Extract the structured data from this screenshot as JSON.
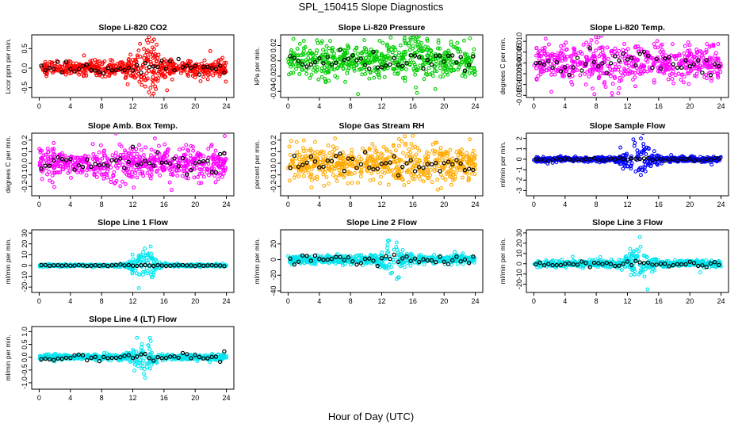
{
  "figure": {
    "title": "SPL_150415  Slope Diagnostics",
    "xlabel": "Hour of Day (UTC)"
  },
  "chart_data": [
    {
      "type": "scatter",
      "title": "Slope Li-820 CO2",
      "ylabel": "Licor ppm per min.",
      "xlim": [
        0,
        24
      ],
      "ylim": [
        -0.75,
        0.85
      ],
      "xticks": [
        0,
        4,
        8,
        12,
        16,
        20,
        24
      ],
      "yticks": [
        -0.5,
        0.0,
        0.5
      ],
      "ytick_labels": [
        "-0.5",
        "0.0",
        "0.5"
      ],
      "color": "#ff0000",
      "spread": 0.09,
      "spike_amp": 0.6,
      "spike_center": 13.8,
      "summary_spread": 0.08,
      "summary_count": 45,
      "count": 600
    },
    {
      "type": "scatter",
      "title": "Slope Li-820 Pressure",
      "ylabel": "kPa per min.",
      "xlim": [
        0,
        24
      ],
      "ylim": [
        -0.048,
        0.034
      ],
      "xticks": [
        0,
        4,
        8,
        12,
        16,
        20,
        24
      ],
      "yticks": [
        -0.04,
        -0.02,
        0.0,
        0.02
      ],
      "ytick_labels": [
        "-0.04",
        "-0.02",
        "0.00",
        "0.02"
      ],
      "color": "#00cc00",
      "spread": 0.011,
      "spike_amp": 0.02,
      "spike_center": 16.5,
      "summary_spread": 0.006,
      "summary_count": 45,
      "count": 600
    },
    {
      "type": "scatter",
      "title": "Slope Li-820 Temp.",
      "ylabel": "degrees C per min.",
      "xlim": [
        0,
        24
      ],
      "ylim": [
        -0.016,
        0.013
      ],
      "xticks": [
        0,
        4,
        8,
        12,
        16,
        20,
        24
      ],
      "yticks": [
        -0.015,
        -0.01,
        -0.005,
        0.0,
        0.005,
        0.01
      ],
      "ytick_labels": [
        "-0.015",
        "-0.010",
        "-0.005",
        "0.000",
        "0.005",
        "0.010"
      ],
      "color": "#ff00ff",
      "spread": 0.004,
      "spike_amp": 0.006,
      "spike_center": 9.5,
      "summary_spread": 0.003,
      "summary_count": 45,
      "count": 600
    },
    {
      "type": "scatter",
      "title": "Slope Amb. Box Temp.",
      "ylabel": "degrees C per min.",
      "xlim": [
        0,
        24
      ],
      "ylim": [
        -0.28,
        0.26
      ],
      "xticks": [
        0,
        4,
        8,
        12,
        16,
        20,
        24
      ],
      "yticks": [
        -0.2,
        -0.1,
        0.0,
        0.1,
        0.2
      ],
      "ytick_labels": [
        "-0.2",
        "-0.1",
        "0.0",
        "0.1",
        "0.2"
      ],
      "color": "#ff00ff",
      "spread": 0.07,
      "spike_amp": 0.08,
      "spike_center": 10,
      "summary_spread": 0.05,
      "summary_count": 45,
      "count": 600
    },
    {
      "type": "scatter",
      "title": "Slope Gas Stream RH",
      "ylabel": "percent per min.",
      "xlim": [
        0,
        24
      ],
      "ylim": [
        -0.28,
        0.26
      ],
      "xticks": [
        0,
        4,
        8,
        12,
        16,
        20,
        24
      ],
      "yticks": [
        -0.2,
        -0.1,
        0.0,
        0.1,
        0.2
      ],
      "ytick_labels": [
        "-0.2",
        "-0.1",
        "0.0",
        "0.1",
        "0.2"
      ],
      "color": "#ffaa00",
      "spread": 0.075,
      "spike_amp": 0.08,
      "spike_center": 15,
      "summary_spread": 0.05,
      "summary_count": 45,
      "count": 600
    },
    {
      "type": "scatter",
      "title": "Slope Sample Flow",
      "ylabel": "ml/min per min.",
      "xlim": [
        0,
        24
      ],
      "ylim": [
        -3.5,
        2.5
      ],
      "xticks": [
        0,
        4,
        8,
        12,
        16,
        20,
        24
      ],
      "yticks": [
        -3,
        -2,
        -1,
        0,
        1,
        2
      ],
      "ytick_labels": [
        "-3",
        "-2",
        "-1",
        "0",
        "1",
        "2"
      ],
      "color": "#0000ff",
      "spread": 0.12,
      "spike_amp": 2.2,
      "spike_center": 13.5,
      "summary_spread": 0.08,
      "summary_count": 45,
      "count": 600
    },
    {
      "type": "scatter",
      "title": "Slope Line 1 Flow",
      "ylabel": "ml/min per min.",
      "xlim": [
        0,
        24
      ],
      "ylim": [
        -25,
        33
      ],
      "xticks": [
        0,
        4,
        8,
        12,
        16,
        20,
        24
      ],
      "yticks": [
        -20,
        -10,
        0,
        10,
        20,
        30
      ],
      "ytick_labels": [
        "-20",
        "-10",
        "0",
        "10",
        "20",
        "30"
      ],
      "color": "#00e5ee",
      "spread": 0.5,
      "spike_amp": 14,
      "spike_center": 13.5,
      "summary_spread": 0.3,
      "summary_count": 45,
      "count": 600
    },
    {
      "type": "scatter",
      "title": "Slope Line 2 Flow",
      "ylabel": "ml/min per min.",
      "xlim": [
        0,
        24
      ],
      "ylim": [
        -42,
        38
      ],
      "xticks": [
        0,
        4,
        8,
        12,
        16,
        20,
        24
      ],
      "yticks": [
        -40,
        -20,
        0,
        20
      ],
      "ytick_labels": [
        "-40",
        "-20",
        "0",
        "20"
      ],
      "color": "#00e5ee",
      "spread": 2.5,
      "spike_amp": 18,
      "spike_center": 13.5,
      "summary_spread": 3,
      "summary_count": 45,
      "count": 600
    },
    {
      "type": "scatter",
      "title": "Slope Line 3 Flow",
      "ylabel": "ml/min per min.",
      "xlim": [
        0,
        24
      ],
      "ylim": [
        -28,
        33
      ],
      "xticks": [
        0,
        4,
        8,
        12,
        16,
        20,
        24
      ],
      "yticks": [
        -20,
        -10,
        0,
        10,
        20,
        30
      ],
      "ytick_labels": [
        "-20",
        "-10",
        "0",
        "10",
        "20",
        "30"
      ],
      "color": "#00e5ee",
      "spread": 1.5,
      "spike_amp": 14,
      "spike_center": 13.5,
      "summary_spread": 1.5,
      "summary_count": 45,
      "count": 600
    },
    {
      "type": "scatter",
      "title": "Slope Line 4 (LT) Flow",
      "ylabel": "ml/min per min.",
      "xlim": [
        0,
        24
      ],
      "ylim": [
        -1.25,
        1.2
      ],
      "xticks": [
        0,
        4,
        8,
        12,
        16,
        20,
        24
      ],
      "yticks": [
        -1.0,
        -0.5,
        0.0,
        0.5,
        1.0
      ],
      "ytick_labels": [
        "-1.0",
        "-0.5",
        "0.0",
        "0.5",
        "1.0"
      ],
      "color": "#00e5ee",
      "spread": 0.05,
      "spike_amp": 0.55,
      "spike_center": 13.3,
      "summary_spread": 0.08,
      "summary_count": 45,
      "count": 600
    }
  ]
}
